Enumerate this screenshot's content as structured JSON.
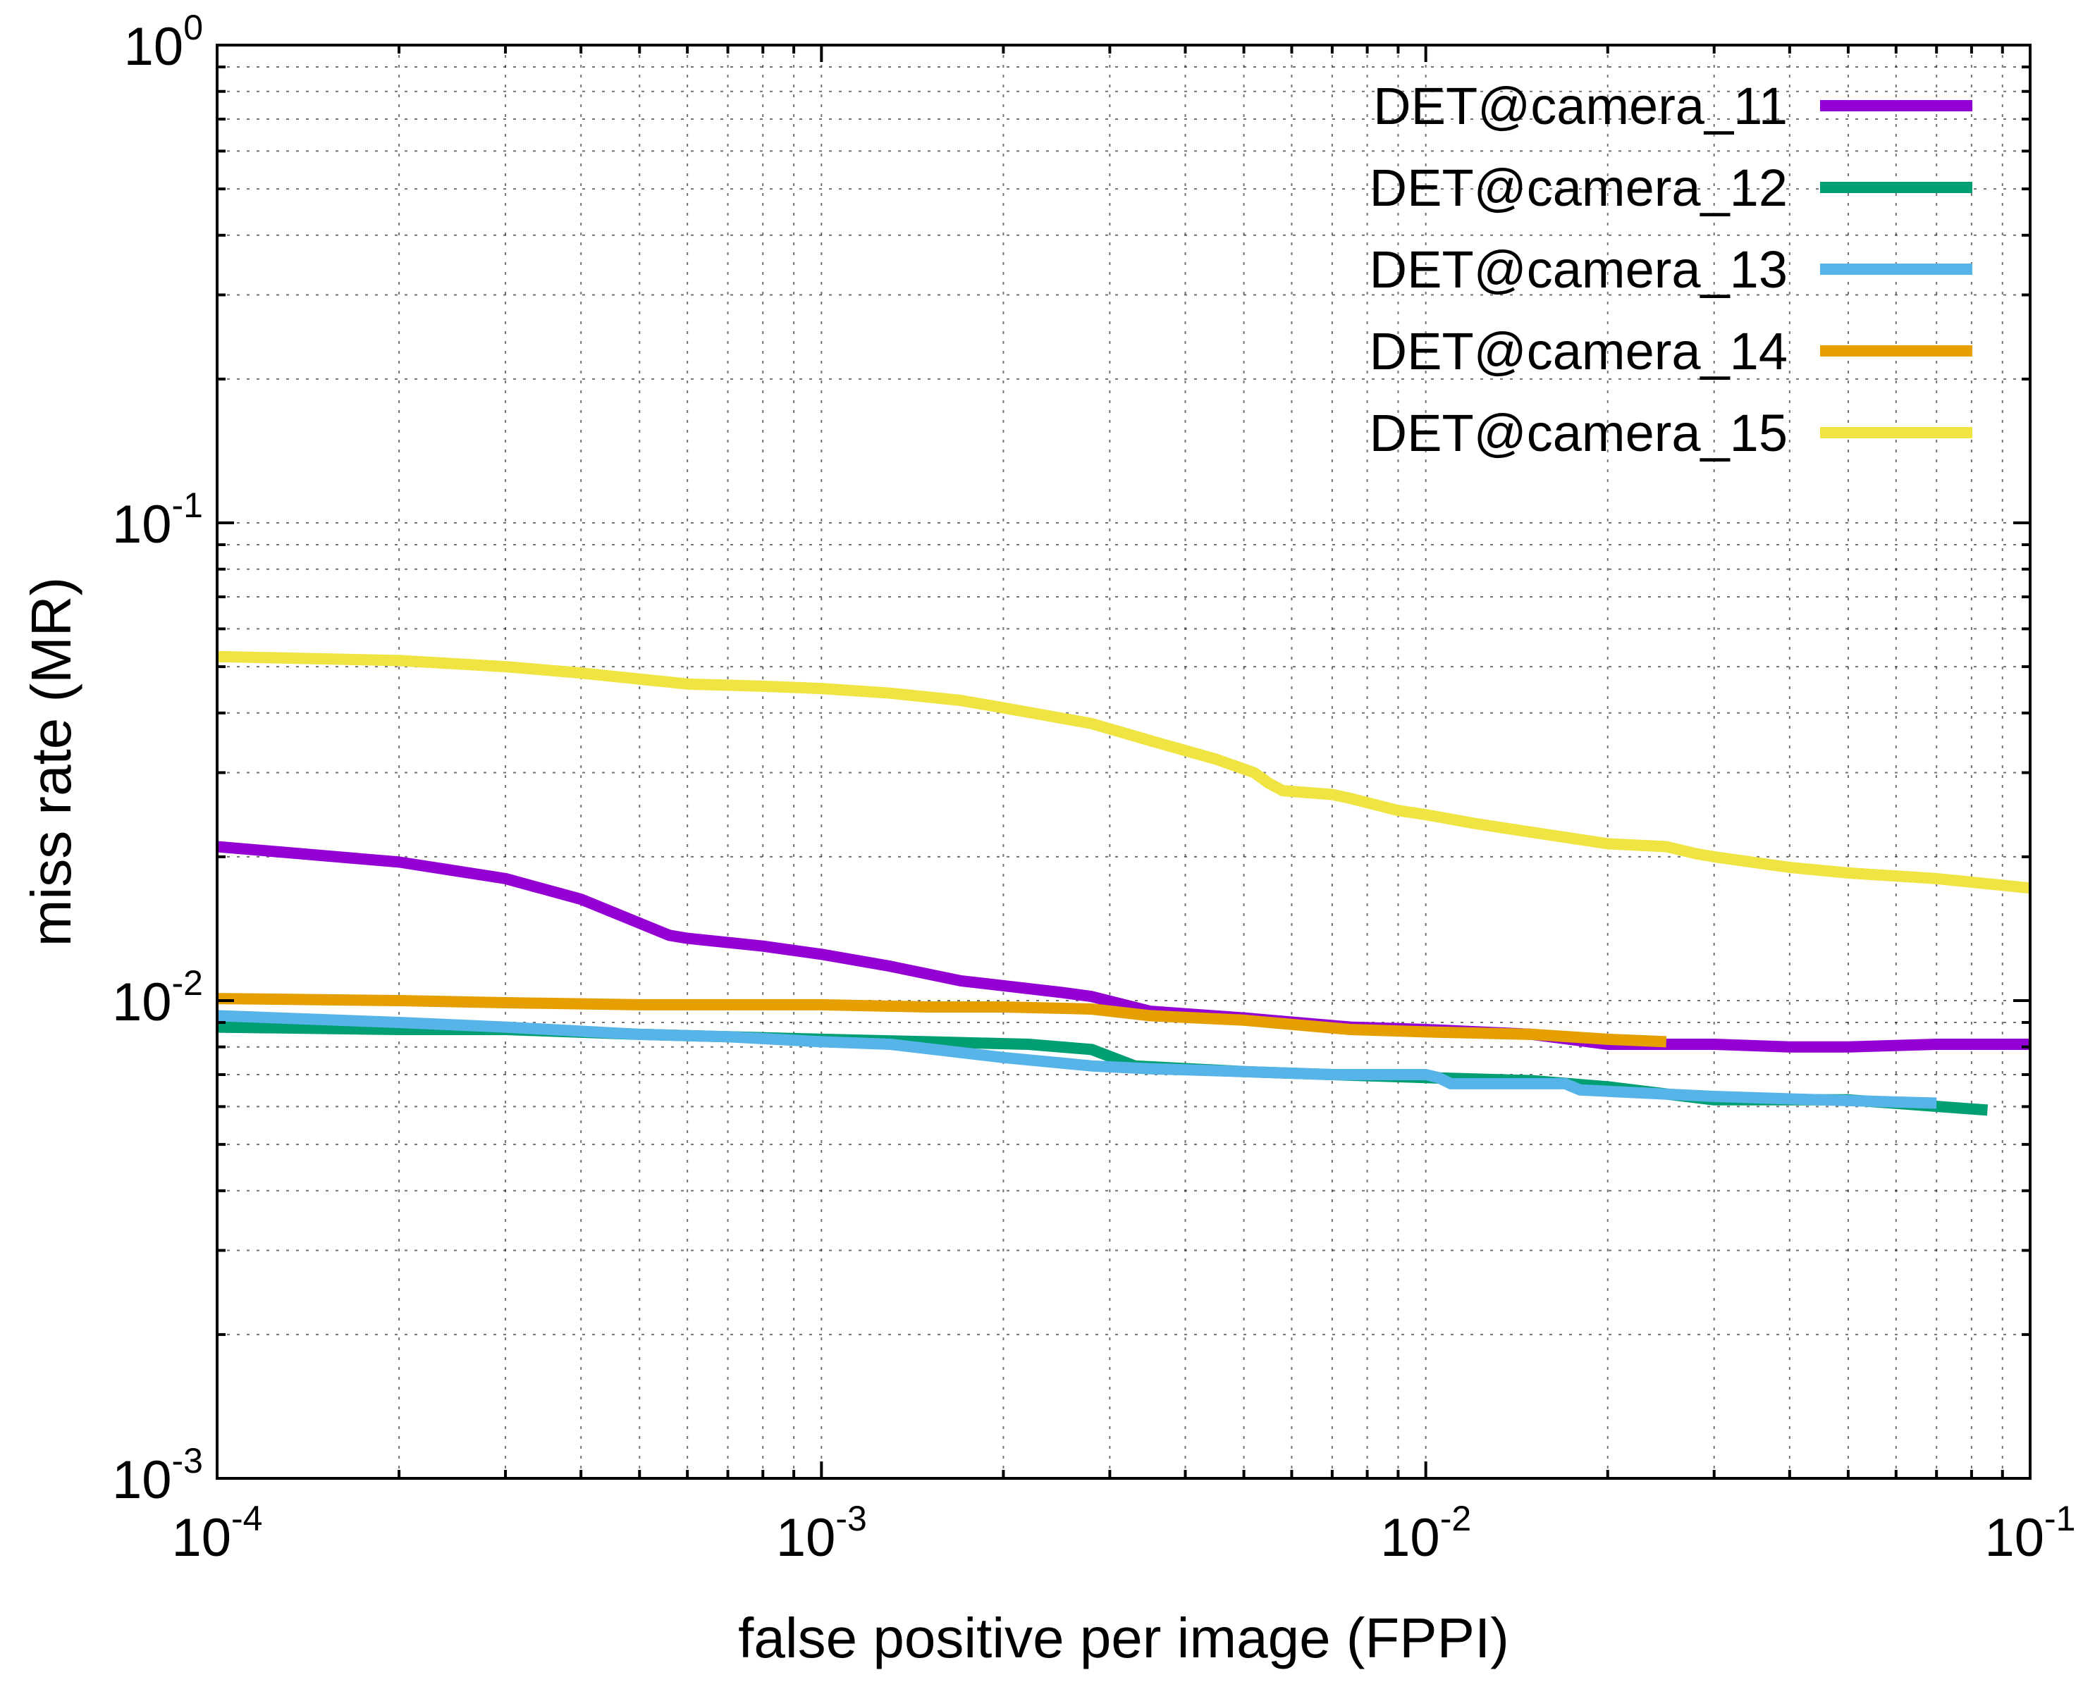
{
  "chart_data": {
    "type": "line",
    "xscale": "log",
    "yscale": "log",
    "xlim": [
      0.0001,
      0.1
    ],
    "ylim": [
      0.001,
      1
    ],
    "xlabel": "false positive per image (FPPI)",
    "ylabel": "miss rate (MR)",
    "x_ticks": [
      {
        "base": "10",
        "exp": "-4",
        "value": 0.0001
      },
      {
        "base": "10",
        "exp": "-3",
        "value": 0.001
      },
      {
        "base": "10",
        "exp": "-2",
        "value": 0.01
      },
      {
        "base": "10",
        "exp": "-1",
        "value": 0.1
      }
    ],
    "y_ticks": [
      {
        "base": "10",
        "exp": "-3",
        "value": 0.001
      },
      {
        "base": "10",
        "exp": "-2",
        "value": 0.01
      },
      {
        "base": "10",
        "exp": "-1",
        "value": 0.1
      },
      {
        "base": "10",
        "exp": "0",
        "value": 1
      }
    ],
    "grid": true,
    "legend_position": "top-right",
    "series": [
      {
        "name": "DET@camera_11",
        "color": "#9400d3",
        "x": [
          0.0001,
          0.0002,
          0.0003,
          0.0004,
          0.00056,
          0.0006,
          0.0008,
          0.001,
          0.0013,
          0.0017,
          0.0025,
          0.0028,
          0.0035,
          0.005,
          0.0075,
          0.01,
          0.015,
          0.02,
          0.03,
          0.04,
          0.05,
          0.07,
          0.1
        ],
        "y": [
          0.021,
          0.0195,
          0.018,
          0.0163,
          0.0137,
          0.0135,
          0.013,
          0.0125,
          0.0118,
          0.011,
          0.0104,
          0.0102,
          0.0095,
          0.0092,
          0.0088,
          0.0087,
          0.0085,
          0.0081,
          0.0081,
          0.008,
          0.008,
          0.0081,
          0.0081
        ]
      },
      {
        "name": "DET@camera_12",
        "color": "#009e73",
        "x": [
          0.0001,
          0.0002,
          0.0003,
          0.0005,
          0.0007,
          0.001,
          0.0015,
          0.0022,
          0.0028,
          0.0033,
          0.005,
          0.007,
          0.01,
          0.015,
          0.02,
          0.03,
          0.05,
          0.085
        ],
        "y": [
          0.0088,
          0.0087,
          0.0087,
          0.0085,
          0.0084,
          0.0083,
          0.0082,
          0.0081,
          0.0079,
          0.0073,
          0.0071,
          0.007,
          0.0069,
          0.0068,
          0.0066,
          0.0062,
          0.0062,
          0.0059
        ]
      },
      {
        "name": "DET@camera_13",
        "color": "#56b4e9",
        "x": [
          0.0001,
          0.0002,
          0.0003,
          0.0005,
          0.0007,
          0.001,
          0.0013,
          0.002,
          0.0028,
          0.0035,
          0.005,
          0.007,
          0.01,
          0.0105,
          0.011,
          0.015,
          0.017,
          0.018,
          0.03,
          0.045,
          0.07
        ],
        "y": [
          0.0093,
          0.009,
          0.0088,
          0.0085,
          0.0084,
          0.0082,
          0.0081,
          0.0076,
          0.0073,
          0.0072,
          0.0071,
          0.007,
          0.007,
          0.0069,
          0.0067,
          0.0067,
          0.0067,
          0.0065,
          0.0063,
          0.0062,
          0.0061
        ]
      },
      {
        "name": "DET@camera_14",
        "color": "#e69f00",
        "x": [
          0.0001,
          0.0002,
          0.0003,
          0.0005,
          0.0007,
          0.001,
          0.0015,
          0.002,
          0.0028,
          0.0035,
          0.005,
          0.0075,
          0.01,
          0.015,
          0.02,
          0.025
        ],
        "y": [
          0.0101,
          0.01,
          0.0099,
          0.0098,
          0.0098,
          0.0098,
          0.0097,
          0.0097,
          0.0096,
          0.0093,
          0.0091,
          0.0087,
          0.0086,
          0.0085,
          0.0083,
          0.0082
        ]
      },
      {
        "name": "DET@camera_15",
        "color": "#f0e442",
        "x": [
          0.0001,
          0.0002,
          0.0003,
          0.0004,
          0.0006,
          0.0008,
          0.001,
          0.0013,
          0.0017,
          0.002,
          0.0028,
          0.0035,
          0.0045,
          0.0052,
          0.0055,
          0.0058,
          0.007,
          0.0075,
          0.009,
          0.01,
          0.012,
          0.015,
          0.02,
          0.025,
          0.028,
          0.03,
          0.04,
          0.05,
          0.07,
          0.1
        ],
        "y": [
          0.0525,
          0.0515,
          0.05,
          0.0485,
          0.046,
          0.0455,
          0.045,
          0.044,
          0.0425,
          0.041,
          0.038,
          0.035,
          0.032,
          0.03,
          0.0285,
          0.0275,
          0.027,
          0.0265,
          0.025,
          0.0245,
          0.0235,
          0.0225,
          0.0213,
          0.021,
          0.0203,
          0.02,
          0.019,
          0.0185,
          0.018,
          0.0172
        ]
      }
    ]
  }
}
